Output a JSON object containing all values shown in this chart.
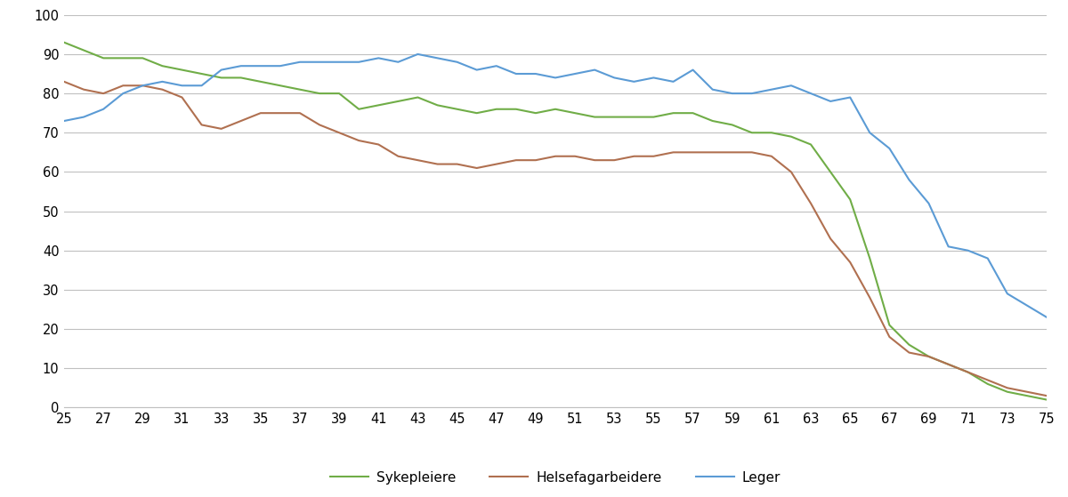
{
  "ages": [
    25,
    26,
    27,
    28,
    29,
    30,
    31,
    32,
    33,
    34,
    35,
    36,
    37,
    38,
    39,
    40,
    41,
    42,
    43,
    44,
    45,
    46,
    47,
    48,
    49,
    50,
    51,
    52,
    53,
    54,
    55,
    56,
    57,
    58,
    59,
    60,
    61,
    62,
    63,
    64,
    65,
    66,
    67,
    68,
    69,
    70,
    71,
    72,
    73,
    74,
    75
  ],
  "sykepleiere": [
    93,
    91,
    89,
    89,
    89,
    87,
    86,
    85,
    84,
    84,
    83,
    82,
    81,
    80,
    80,
    76,
    77,
    78,
    79,
    77,
    76,
    75,
    76,
    76,
    75,
    76,
    75,
    74,
    74,
    74,
    74,
    75,
    75,
    73,
    72,
    70,
    70,
    69,
    67,
    60,
    53,
    38,
    21,
    16,
    13,
    11,
    9,
    6,
    4,
    3,
    2
  ],
  "helsefagarbeidere": [
    83,
    81,
    80,
    82,
    82,
    81,
    79,
    72,
    71,
    73,
    75,
    75,
    75,
    72,
    70,
    68,
    67,
    64,
    63,
    62,
    62,
    61,
    62,
    63,
    63,
    64,
    64,
    63,
    63,
    64,
    64,
    65,
    65,
    65,
    65,
    65,
    64,
    60,
    52,
    43,
    37,
    28,
    18,
    14,
    13,
    11,
    9,
    7,
    5,
    4,
    3
  ],
  "leger": [
    73,
    74,
    76,
    80,
    82,
    83,
    82,
    82,
    86,
    87,
    87,
    87,
    88,
    88,
    88,
    88,
    89,
    88,
    90,
    89,
    88,
    86,
    87,
    85,
    85,
    84,
    85,
    86,
    84,
    83,
    84,
    83,
    86,
    81,
    80,
    80,
    81,
    82,
    80,
    78,
    79,
    70,
    66,
    58,
    52,
    41,
    40,
    38,
    29,
    26,
    23
  ],
  "sykepleiere_color": "#70ad47",
  "helsefagarbeidere_color": "#b07050",
  "leger_color": "#5b9bd5",
  "ylim": [
    0,
    100
  ],
  "yticks": [
    0,
    10,
    20,
    30,
    40,
    50,
    60,
    70,
    80,
    90,
    100
  ],
  "xticks": [
    25,
    27,
    29,
    31,
    33,
    35,
    37,
    39,
    41,
    43,
    45,
    47,
    49,
    51,
    53,
    55,
    57,
    59,
    61,
    63,
    65,
    67,
    69,
    71,
    73,
    75
  ],
  "legend_labels": [
    "Sykepleiere",
    "Helsefagarbeidere",
    "Leger"
  ],
  "background_color": "#ffffff",
  "grid_color": "#c0c0c0"
}
